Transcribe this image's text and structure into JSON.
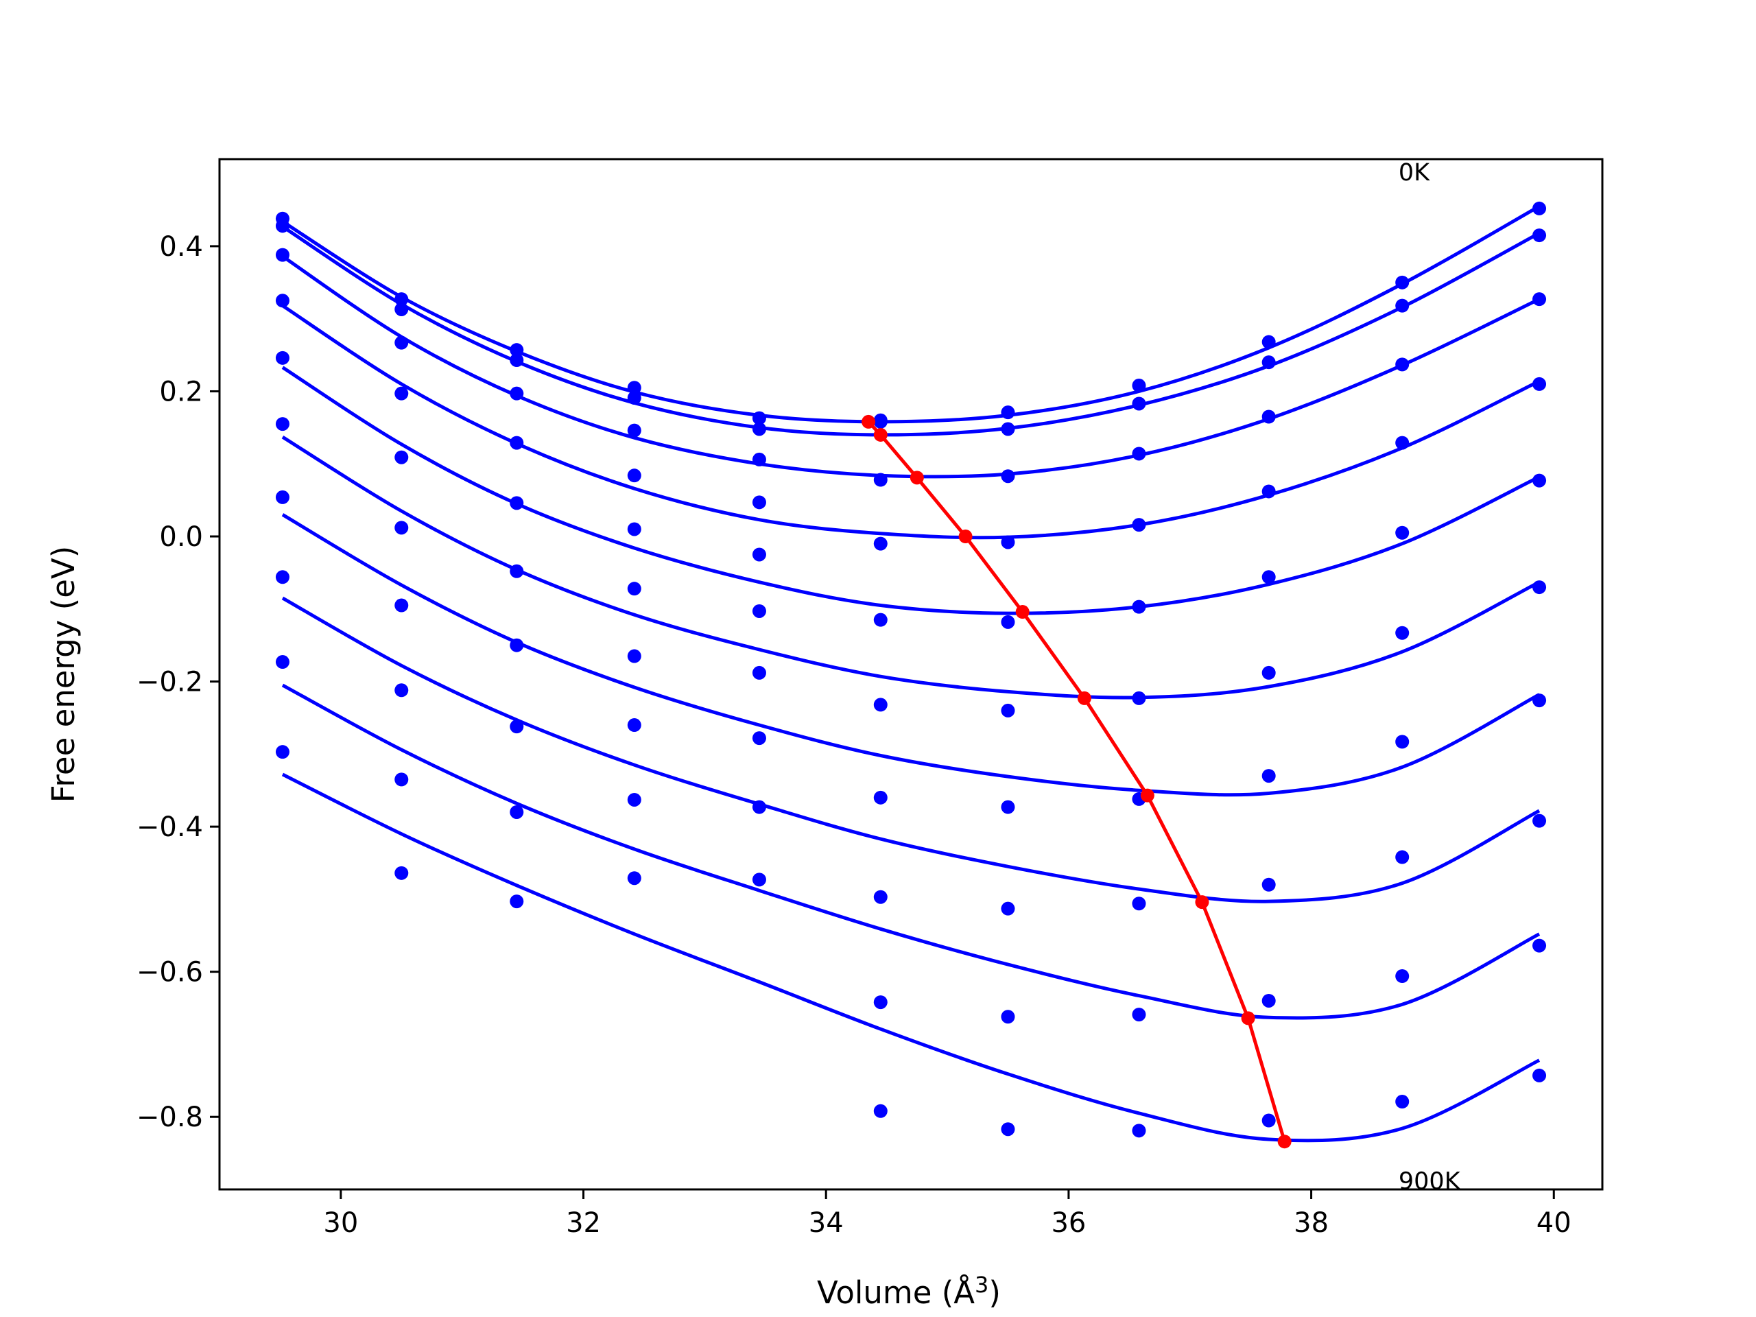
{
  "chart_data": {
    "type": "scatter",
    "title": "",
    "xlabel": "Volume (Å",
    "xlabel_sup": "3",
    "xlabel_close": ")",
    "ylabel": "Free energy (eV)",
    "xlim": [
      29.0,
      40.4
    ],
    "ylim": [
      -0.9,
      0.52
    ],
    "xticks": [
      30,
      32,
      34,
      36,
      38,
      40
    ],
    "yticks": [
      0.4,
      0.2,
      0.0,
      -0.2,
      -0.4,
      -0.6,
      -0.8
    ],
    "ytick_labels": [
      "0.4",
      "0.2",
      "0.0",
      "−0.2",
      "−0.4",
      "−0.6",
      "−0.8"
    ],
    "grid": false,
    "annotations": [
      {
        "text": "0K",
        "x": 38.72,
        "y": 0.5
      },
      {
        "text": "900K",
        "x": 38.72,
        "y": -0.89
      }
    ],
    "colors": {
      "series": "#0000ff",
      "minima": "#ff0000"
    },
    "x": [
      29.52,
      30.5,
      31.45,
      32.42,
      33.45,
      34.45,
      35.5,
      36.58,
      37.65,
      38.75,
      39.88
    ],
    "series": [
      {
        "y": [
          0.438,
          0.327,
          0.257,
          0.205,
          0.163,
          0.16,
          0.171,
          0.208,
          0.268,
          0.35,
          0.452
        ],
        "curve_y": [
          0.434,
          0.33,
          0.255,
          0.199,
          0.167,
          0.158,
          0.167,
          0.2,
          0.26,
          0.348,
          0.455
        ]
      },
      {
        "y": [
          0.428,
          0.313,
          0.243,
          0.191,
          0.148,
          0.158,
          0.148,
          0.183,
          0.24,
          0.318,
          0.415
        ],
        "curve_y": [
          0.427,
          0.32,
          0.241,
          0.184,
          0.15,
          0.14,
          0.149,
          0.181,
          0.235,
          0.316,
          0.418
        ]
      },
      {
        "y": [
          0.388,
          0.267,
          0.197,
          0.146,
          0.106,
          0.078,
          0.083,
          0.114,
          0.165,
          0.237,
          0.327
        ],
        "curve_y": [
          0.386,
          0.275,
          0.194,
          0.136,
          0.1,
          0.084,
          0.086,
          0.112,
          0.162,
          0.236,
          0.327
        ]
      },
      {
        "y": [
          0.325,
          0.197,
          0.129,
          0.084,
          0.047,
          -0.01,
          -0.008,
          0.016,
          0.062,
          0.129,
          0.21
        ],
        "curve_y": [
          0.318,
          0.21,
          0.128,
          0.066,
          0.023,
          0.004,
          -0.001,
          0.016,
          0.057,
          0.122,
          0.214
        ]
      },
      {
        "y": [
          0.246,
          0.109,
          0.046,
          0.01,
          -0.025,
          -0.115,
          -0.118,
          -0.097,
          -0.056,
          0.005,
          0.077
        ],
        "curve_y": [
          0.233,
          0.127,
          0.045,
          -0.016,
          -0.063,
          -0.095,
          -0.106,
          -0.097,
          -0.066,
          -0.01,
          0.082
        ]
      },
      {
        "y": [
          0.155,
          0.012,
          -0.048,
          -0.072,
          -0.103,
          -0.232,
          -0.24,
          -0.223,
          -0.188,
          -0.133,
          -0.07
        ],
        "curve_y": [
          0.137,
          0.035,
          -0.046,
          -0.108,
          -0.156,
          -0.193,
          -0.214,
          -0.222,
          -0.207,
          -0.159,
          -0.063
        ]
      },
      {
        "y": [
          0.054,
          -0.095,
          -0.15,
          -0.165,
          -0.188,
          -0.36,
          -0.373,
          -0.362,
          -0.33,
          -0.283,
          -0.226
        ],
        "curve_y": [
          0.03,
          -0.067,
          -0.146,
          -0.208,
          -0.26,
          -0.302,
          -0.331,
          -0.35,
          -0.354,
          -0.318,
          -0.218
        ]
      },
      {
        "y": [
          -0.056,
          -0.212,
          -0.262,
          -0.26,
          -0.278,
          -0.497,
          -0.513,
          -0.506,
          -0.48,
          -0.442,
          -0.392
        ],
        "curve_y": [
          -0.085,
          -0.178,
          -0.253,
          -0.315,
          -0.369,
          -0.417,
          -0.455,
          -0.486,
          -0.503,
          -0.478,
          -0.378
        ]
      },
      {
        "y": [
          -0.173,
          -0.335,
          -0.38,
          -0.363,
          -0.373,
          -0.642,
          -0.662,
          -0.659,
          -0.64,
          -0.606,
          -0.564
        ],
        "curve_y": [
          -0.205,
          -0.294,
          -0.368,
          -0.431,
          -0.488,
          -0.541,
          -0.59,
          -0.633,
          -0.663,
          -0.645,
          -0.548
        ]
      },
      {
        "y": [
          -0.297,
          -0.464,
          -0.503,
          -0.471,
          -0.473,
          -0.792,
          -0.817,
          -0.819,
          -0.805,
          -0.779,
          -0.743
        ],
        "curve_y": [
          -0.328,
          -0.41,
          -0.481,
          -0.548,
          -0.614,
          -0.679,
          -0.741,
          -0.795,
          -0.831,
          -0.816,
          -0.722
        ]
      }
    ],
    "minima": {
      "x": [
        34.35,
        34.45,
        34.75,
        35.15,
        35.62,
        36.13,
        36.65,
        37.1,
        37.48,
        37.78
      ],
      "y": [
        0.158,
        0.14,
        0.081,
        0.0,
        -0.104,
        -0.223,
        -0.357,
        -0.504,
        -0.664,
        -0.834
      ]
    }
  }
}
